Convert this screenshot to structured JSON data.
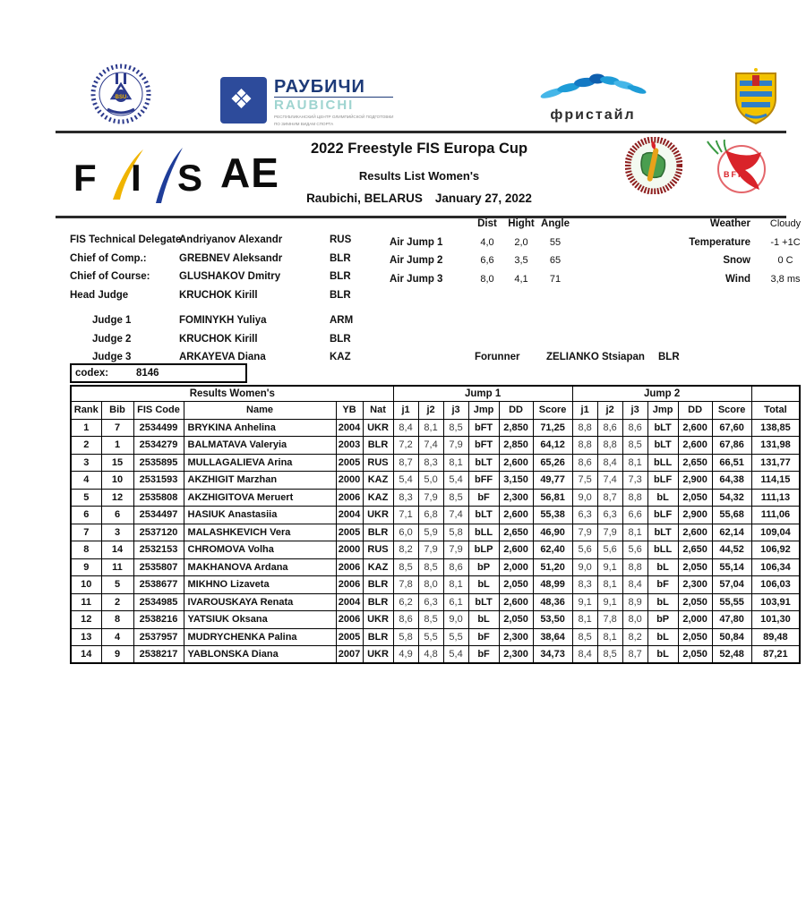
{
  "header": {
    "title": "2022 Freestyle FIS Europa Cup",
    "subtitle": "Results List Women's",
    "location": "Raubichi, BELARUS",
    "date": "January 27, 2022",
    "discipline_code": "AE"
  },
  "logos": {
    "fis": "FIS",
    "raubichi_ru": "РАУБИЧИ",
    "raubichi_en": "RAUBICHI",
    "raubichi_sub1": "РЕСПУБЛИКАНСКИЙ ЦЕНТР ОЛИМПИЙСКОЙ ПОДГОТОВКИ",
    "raubichi_sub2": "ПО ЗИМНИМ ВИДАМ СПОРТА",
    "freestyle": "фристайл",
    "bff": "BFF",
    "colors": {
      "fis_yellow": "#f0b400",
      "fis_blue": "#1f3d99",
      "raubichi_blue": "#2d4b9b",
      "freestyle_blue": "#1e9cd7",
      "bff_red": "#d9232a",
      "bff_green": "#3a9a43"
    }
  },
  "officials": [
    {
      "role": "FIS Technical Delegate",
      "name": "Andriyanov Alexandr",
      "nation": "RUS"
    },
    {
      "role": "Chief of Comp.:",
      "name": "GREBNEV Aleksandr",
      "nation": "BLR"
    },
    {
      "role": "Chief of Course:",
      "name": "GLUSHAKOV Dmitry",
      "nation": "BLR"
    },
    {
      "role": "Head Judge",
      "name": "KRUCHOK Kirill",
      "nation": "BLR"
    }
  ],
  "judges": [
    {
      "role": "Judge 1",
      "name": "FOMINYKH Yuliya",
      "nation": "ARM"
    },
    {
      "role": "Judge 2",
      "name": "KRUCHOK Kirill",
      "nation": "BLR"
    },
    {
      "role": "Judge 3",
      "name": "ARKAYEVA Diana",
      "nation": "KAZ"
    }
  ],
  "forerunner": {
    "label": "Forunner",
    "name": "ZELIANKO Stsiapan",
    "nation": "BLR"
  },
  "air_jumps": {
    "headers": {
      "dist": "Dist",
      "hight": "Hight",
      "angle": "Angle"
    },
    "rows": [
      {
        "label": "Air Jump 1",
        "dist": "4,0",
        "hight": "2,0",
        "angle": "55"
      },
      {
        "label": "Air Jump 2",
        "dist": "6,6",
        "hight": "3,5",
        "angle": "65"
      },
      {
        "label": "Air Jump 3",
        "dist": "8,0",
        "hight": "4,1",
        "angle": "71"
      }
    ]
  },
  "weather": [
    {
      "label": "Weather",
      "value": "Cloudy"
    },
    {
      "label": "Temperature",
      "value": "-1 +1C"
    },
    {
      "label": "Snow",
      "value": "0 C"
    },
    {
      "label": "Wind",
      "value": "3,8 ms"
    }
  ],
  "codex": {
    "label": "codex:",
    "value": "8146"
  },
  "results": {
    "section_title": "Results Women's",
    "group_headers": {
      "jump1": "Jump 1",
      "jump2": "Jump 2"
    },
    "columns": [
      "Rank",
      "Bib",
      "FIS Code",
      "Name",
      "YB",
      "Nat",
      "j1",
      "j2",
      "j3",
      "Jmp",
      "DD",
      "Score",
      "j1",
      "j2",
      "j3",
      "Jmp",
      "DD",
      "Score",
      "Total"
    ],
    "col_keys": [
      "rank",
      "bib",
      "fis-code",
      "name",
      "yb",
      "nat",
      "j1-1",
      "j1-2",
      "j1-3",
      "jmp1",
      "dd1",
      "score1",
      "j2-1",
      "j2-2",
      "j2-3",
      "jmp2",
      "dd2",
      "score2",
      "total"
    ],
    "rows": [
      [
        "1",
        "7",
        "2534499",
        "BRYKINA Anhelina",
        "2004",
        "UKR",
        "8,4",
        "8,1",
        "8,5",
        "bFT",
        "2,850",
        "71,25",
        "8,8",
        "8,6",
        "8,6",
        "bLT",
        "2,600",
        "67,60",
        "138,85"
      ],
      [
        "2",
        "1",
        "2534279",
        "BALMATAVA Valeryia",
        "2003",
        "BLR",
        "7,2",
        "7,4",
        "7,9",
        "bFT",
        "2,850",
        "64,12",
        "8,8",
        "8,8",
        "8,5",
        "bLT",
        "2,600",
        "67,86",
        "131,98"
      ],
      [
        "3",
        "15",
        "2535895",
        "MULLAGALIEVA Arina",
        "2005",
        "RUS",
        "8,7",
        "8,3",
        "8,1",
        "bLT",
        "2,600",
        "65,26",
        "8,6",
        "8,4",
        "8,1",
        "bLL",
        "2,650",
        "66,51",
        "131,77"
      ],
      [
        "4",
        "10",
        "2531593",
        "AKZHIGIT Marzhan",
        "2000",
        "KAZ",
        "5,4",
        "5,0",
        "5,4",
        "bFF",
        "3,150",
        "49,77",
        "7,5",
        "7,4",
        "7,3",
        "bLF",
        "2,900",
        "64,38",
        "114,15"
      ],
      [
        "5",
        "12",
        "2535808",
        "AKZHIGITOVA Meruert",
        "2006",
        "KAZ",
        "8,3",
        "7,9",
        "8,5",
        "bF",
        "2,300",
        "56,81",
        "9,0",
        "8,7",
        "8,8",
        "bL",
        "2,050",
        "54,32",
        "111,13"
      ],
      [
        "6",
        "6",
        "2534497",
        "HASIUK Anastasiia",
        "2004",
        "UKR",
        "7,1",
        "6,8",
        "7,4",
        "bLT",
        "2,600",
        "55,38",
        "6,3",
        "6,3",
        "6,6",
        "bLF",
        "2,900",
        "55,68",
        "111,06"
      ],
      [
        "7",
        "3",
        "2537120",
        "MALASHKEVICH Vera",
        "2005",
        "BLR",
        "6,0",
        "5,9",
        "5,8",
        "bLL",
        "2,650",
        "46,90",
        "7,9",
        "7,9",
        "8,1",
        "bLT",
        "2,600",
        "62,14",
        "109,04"
      ],
      [
        "8",
        "14",
        "2532153",
        "CHROMOVA Volha",
        "2000",
        "RUS",
        "8,2",
        "7,9",
        "7,9",
        "bLP",
        "2,600",
        "62,40",
        "5,6",
        "5,6",
        "5,6",
        "bLL",
        "2,650",
        "44,52",
        "106,92"
      ],
      [
        "9",
        "11",
        "2535807",
        "MAKHANOVA Ardana",
        "2006",
        "KAZ",
        "8,5",
        "8,5",
        "8,6",
        "bP",
        "2,000",
        "51,20",
        "9,0",
        "9,1",
        "8,8",
        "bL",
        "2,050",
        "55,14",
        "106,34"
      ],
      [
        "10",
        "5",
        "2538677",
        "MIKHNO Lizaveta",
        "2006",
        "BLR",
        "7,8",
        "8,0",
        "8,1",
        "bL",
        "2,050",
        "48,99",
        "8,3",
        "8,1",
        "8,4",
        "bF",
        "2,300",
        "57,04",
        "106,03"
      ],
      [
        "11",
        "2",
        "2534985",
        "IVAROUSKAYA Renata",
        "2004",
        "BLR",
        "6,2",
        "6,3",
        "6,1",
        "bLT",
        "2,600",
        "48,36",
        "9,1",
        "9,1",
        "8,9",
        "bL",
        "2,050",
        "55,55",
        "103,91"
      ],
      [
        "12",
        "8",
        "2538216",
        "YATSIUK Oksana",
        "2006",
        "UKR",
        "8,6",
        "8,5",
        "9,0",
        "bL",
        "2,050",
        "53,50",
        "8,1",
        "7,8",
        "8,0",
        "bP",
        "2,000",
        "47,80",
        "101,30"
      ],
      [
        "13",
        "4",
        "2537957",
        "MUDRYCHENKA Palina",
        "2005",
        "BLR",
        "5,8",
        "5,5",
        "5,5",
        "bF",
        "2,300",
        "38,64",
        "8,5",
        "8,1",
        "8,2",
        "bL",
        "2,050",
        "50,84",
        "89,48"
      ],
      [
        "14",
        "9",
        "2538217",
        "YABLONSKA Diana",
        "2007",
        "UKR",
        "4,9",
        "4,8",
        "5,4",
        "bF",
        "2,300",
        "34,73",
        "8,4",
        "8,5",
        "8,7",
        "bL",
        "2,050",
        "52,48",
        "87,21"
      ]
    ]
  }
}
